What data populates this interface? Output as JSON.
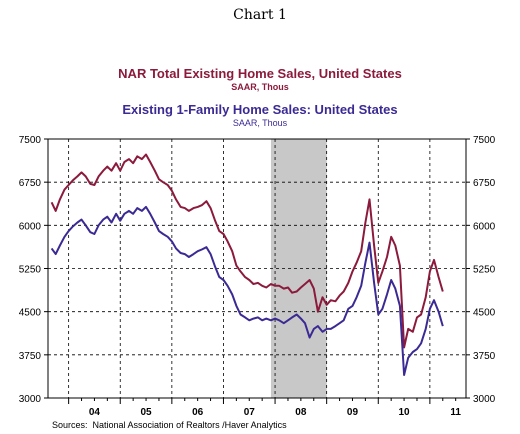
{
  "page_title": "Chart 1",
  "source": "Sources:  National Association of Realtors /Haver Analytics",
  "colors": {
    "series1": "#8b1a3c",
    "series2": "#3c2a94",
    "recession": "#c8c8c8"
  },
  "chart_data": {
    "type": "line",
    "title": "NAR Total Existing Home Sales, United States",
    "subtitle": "SAAR, Thous",
    "title2": "Existing 1-Family Home Sales: United States",
    "subtitle2": "SAAR, Thous",
    "ylim": [
      3000,
      7500
    ],
    "yticks": [
      "7500",
      "6750",
      "6000",
      "5250",
      "4500",
      "3750",
      "3000"
    ],
    "xlim": [
      2003.6,
      2011.7
    ],
    "xtick_labels": [
      "04",
      "05",
      "06",
      "07",
      "08",
      "09",
      "10",
      "11"
    ],
    "grid": true,
    "recession_band": [
      2007.92,
      2009.0
    ],
    "series": [
      {
        "name": "NAR Total Existing Home Sales, United States",
        "x": [
          2003.67,
          2003.75,
          2003.83,
          2003.92,
          2004.0,
          2004.08,
          2004.17,
          2004.25,
          2004.33,
          2004.42,
          2004.5,
          2004.58,
          2004.67,
          2004.75,
          2004.83,
          2004.92,
          2005.0,
          2005.08,
          2005.17,
          2005.25,
          2005.33,
          2005.42,
          2005.5,
          2005.58,
          2005.67,
          2005.75,
          2005.83,
          2005.92,
          2006.0,
          2006.08,
          2006.17,
          2006.25,
          2006.33,
          2006.42,
          2006.5,
          2006.58,
          2006.67,
          2006.75,
          2006.83,
          2006.92,
          2007.0,
          2007.08,
          2007.17,
          2007.25,
          2007.33,
          2007.42,
          2007.5,
          2007.58,
          2007.67,
          2007.75,
          2007.83,
          2007.92,
          2008.0,
          2008.08,
          2008.17,
          2008.25,
          2008.33,
          2008.42,
          2008.5,
          2008.58,
          2008.67,
          2008.75,
          2008.83,
          2008.92,
          2009.0,
          2009.08,
          2009.17,
          2009.25,
          2009.33,
          2009.42,
          2009.5,
          2009.58,
          2009.67,
          2009.75,
          2009.83,
          2009.92,
          2010.0,
          2010.08,
          2010.17,
          2010.25,
          2010.33,
          2010.42,
          2010.5,
          2010.58,
          2010.67,
          2010.75,
          2010.83,
          2010.92,
          2011.0,
          2011.08,
          2011.17,
          2011.25
        ],
        "values": [
          6400,
          6250,
          6450,
          6620,
          6700,
          6780,
          6850,
          6920,
          6850,
          6720,
          6700,
          6850,
          6950,
          7020,
          6950,
          7080,
          6950,
          7100,
          7150,
          7080,
          7200,
          7150,
          7230,
          7100,
          6950,
          6800,
          6750,
          6700,
          6600,
          6450,
          6320,
          6300,
          6250,
          6300,
          6320,
          6350,
          6420,
          6300,
          6100,
          5900,
          5850,
          5720,
          5550,
          5300,
          5200,
          5100,
          5050,
          4980,
          5000,
          4950,
          4920,
          4980,
          4950,
          4950,
          4900,
          4920,
          4830,
          4850,
          4920,
          4980,
          5050,
          4900,
          4500,
          4750,
          4620,
          4700,
          4680,
          4780,
          4850,
          5000,
          5200,
          5350,
          5550,
          6050,
          6450,
          5650,
          5000,
          5200,
          5450,
          5800,
          5650,
          5300,
          3880,
          4200,
          4150,
          4400,
          4450,
          4750,
          5200,
          5400,
          5100,
          4850
        ]
      },
      {
        "name": "Existing 1-Family Home Sales: United States",
        "x": [
          2003.67,
          2003.75,
          2003.83,
          2003.92,
          2004.0,
          2004.08,
          2004.17,
          2004.25,
          2004.33,
          2004.42,
          2004.5,
          2004.58,
          2004.67,
          2004.75,
          2004.83,
          2004.92,
          2005.0,
          2005.08,
          2005.17,
          2005.25,
          2005.33,
          2005.42,
          2005.5,
          2005.58,
          2005.67,
          2005.75,
          2005.83,
          2005.92,
          2006.0,
          2006.08,
          2006.17,
          2006.25,
          2006.33,
          2006.42,
          2006.5,
          2006.58,
          2006.67,
          2006.75,
          2006.83,
          2006.92,
          2007.0,
          2007.08,
          2007.17,
          2007.25,
          2007.33,
          2007.42,
          2007.5,
          2007.58,
          2007.67,
          2007.75,
          2007.83,
          2007.92,
          2008.0,
          2008.08,
          2008.17,
          2008.25,
          2008.33,
          2008.42,
          2008.5,
          2008.58,
          2008.67,
          2008.75,
          2008.83,
          2008.92,
          2009.0,
          2009.08,
          2009.17,
          2009.25,
          2009.33,
          2009.42,
          2009.5,
          2009.58,
          2009.67,
          2009.75,
          2009.83,
          2009.92,
          2010.0,
          2010.08,
          2010.17,
          2010.25,
          2010.33,
          2010.42,
          2010.5,
          2010.58,
          2010.67,
          2010.75,
          2010.83,
          2010.92,
          2011.0,
          2011.08,
          2011.17,
          2011.25
        ],
        "values": [
          5600,
          5500,
          5650,
          5800,
          5900,
          5980,
          6050,
          6100,
          6000,
          5880,
          5850,
          6000,
          6100,
          6150,
          6050,
          6200,
          6080,
          6200,
          6250,
          6200,
          6300,
          6250,
          6320,
          6200,
          6050,
          5900,
          5850,
          5800,
          5720,
          5600,
          5520,
          5500,
          5450,
          5500,
          5550,
          5580,
          5620,
          5500,
          5300,
          5100,
          5050,
          4950,
          4800,
          4600,
          4450,
          4400,
          4350,
          4380,
          4400,
          4350,
          4380,
          4350,
          4380,
          4350,
          4300,
          4350,
          4400,
          4450,
          4380,
          4300,
          4050,
          4200,
          4250,
          4150,
          4200,
          4200,
          4250,
          4300,
          4350,
          4550,
          4600,
          4750,
          4950,
          5350,
          5700,
          5000,
          4450,
          4550,
          4800,
          5050,
          4900,
          4600,
          3400,
          3700,
          3800,
          3850,
          3950,
          4200,
          4550,
          4700,
          4500,
          4250
        ]
      }
    ]
  }
}
